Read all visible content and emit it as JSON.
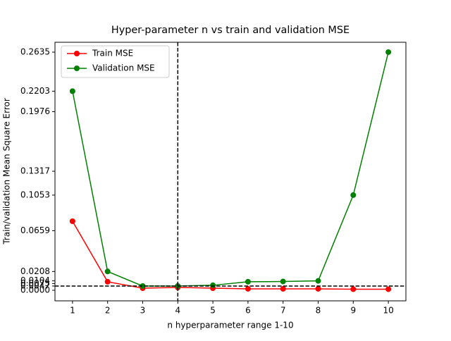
{
  "chart_data": {
    "type": "line",
    "title": "Hyper-parameter n vs train and validation MSE",
    "xlabel": "n hyperparameter range 1-10",
    "ylabel": "Train/validation  Mean Square Error",
    "x": [
      1,
      2,
      3,
      4,
      5,
      6,
      7,
      8,
      9,
      10
    ],
    "series": [
      {
        "name": "Train MSE",
        "color": "#ff0000",
        "values": [
          0.0764,
          0.0094,
          0.0023,
          0.0031,
          0.0023,
          0.0016,
          0.0016,
          0.0016,
          0.0012,
          0.0012
        ]
      },
      {
        "name": "Validation MSE",
        "color": "#008000",
        "values": [
          0.2203,
          0.0208,
          0.0047,
          0.0047,
          0.0055,
          0.0094,
          0.0097,
          0.0104,
          0.1053,
          0.2635
        ]
      }
    ],
    "xlim": [
      0.5,
      10.5
    ],
    "ylim": [
      -0.0117,
      0.2744
    ],
    "xticks": [
      1,
      2,
      3,
      4,
      5,
      6,
      7,
      8,
      9,
      10
    ],
    "yticks": [
      0.0,
      0.0047,
      0.0075,
      0.0104,
      0.0208,
      0.0659,
      0.1053,
      0.1317,
      0.1976,
      0.2203,
      0.2635
    ],
    "vlines": [
      4
    ],
    "hlines": [
      0.0047
    ],
    "legend": "upper left"
  }
}
